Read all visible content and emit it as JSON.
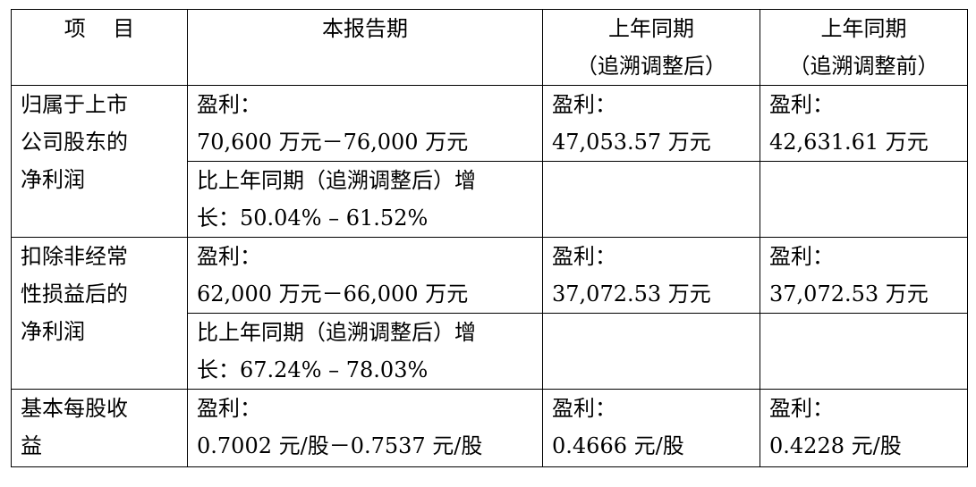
{
  "table": {
    "headers": {
      "item": "项    目",
      "current": "本报告期",
      "prior_adj_line1": "上年同期",
      "prior_adj_line2": "（追溯调整后）",
      "prior_orig_line1": "上年同期",
      "prior_orig_line2": "（追溯调整前）"
    },
    "rows": [
      {
        "item_lines": [
          "归属于上市",
          "公司股东的",
          "净利润"
        ],
        "current_label": "盈利：",
        "current_value": "70,600 万元－76,000 万元",
        "prior_adj_label": "盈利：",
        "prior_adj_value": "47,053.57 万元",
        "prior_orig_label": "盈利：",
        "prior_orig_value": "42,631.61 万元",
        "growth_line1": "比上年同期（追溯调整后）增",
        "growth_line2": "长：50.04% – 61.52%"
      },
      {
        "item_lines": [
          "扣除非经常",
          "性损益后的",
          "净利润"
        ],
        "current_label": "盈利：",
        "current_value": "62,000 万元－66,000 万元",
        "prior_adj_label": "盈利：",
        "prior_adj_value": "37,072.53 万元",
        "prior_orig_label": "盈利：",
        "prior_orig_value": "37,072.53 万元",
        "growth_line1": "比上年同期（追溯调整后）增",
        "growth_line2": "长：67.24% – 78.03%"
      },
      {
        "item_lines": [
          "基本每股收",
          "益"
        ],
        "current_label": "盈利：",
        "current_value": "0.7002 元/股－0.7537 元/股",
        "prior_adj_label": "盈利：",
        "prior_adj_value": "0.4666 元/股",
        "prior_orig_label": "盈利：",
        "prior_orig_value": "0.4228 元/股"
      }
    ]
  }
}
